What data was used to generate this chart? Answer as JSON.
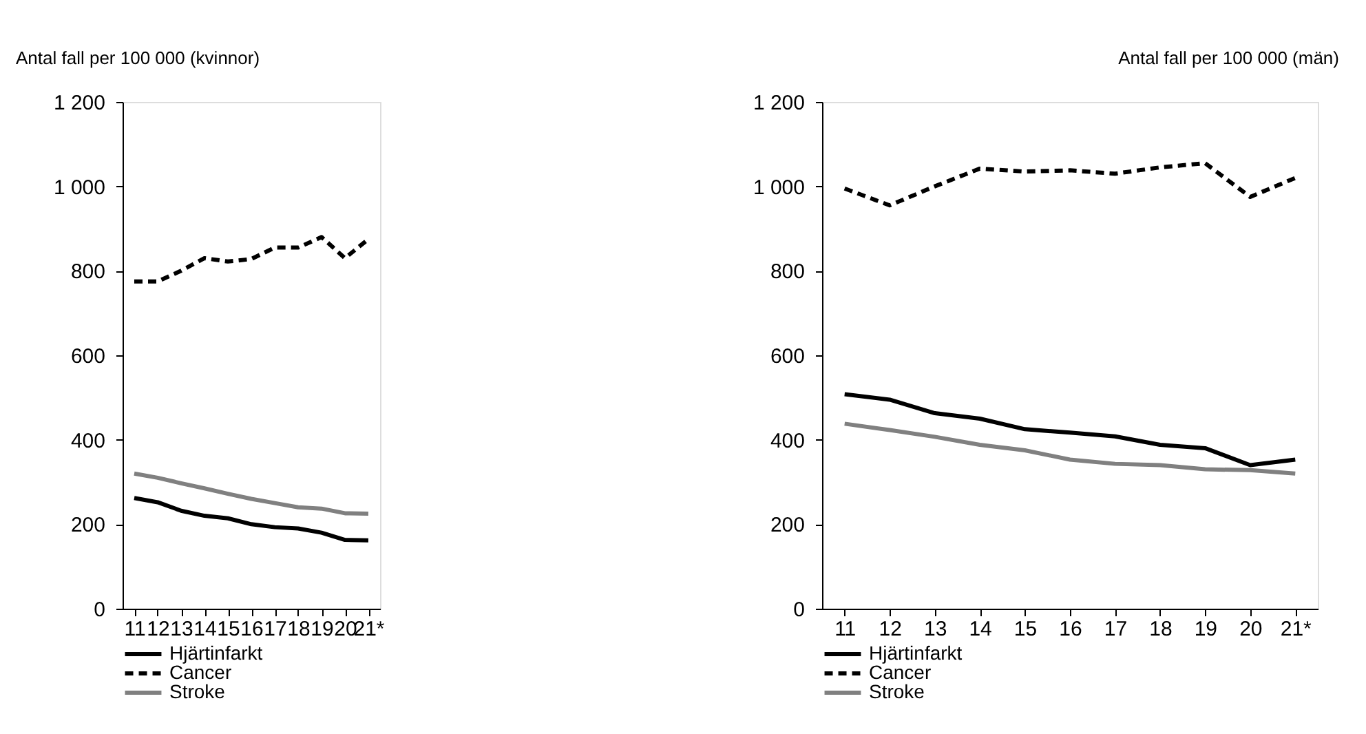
{
  "chart_data": [
    {
      "type": "line",
      "ylabel": "Antal fall per 100 000 (kvinnor)",
      "categories": [
        "11",
        "12",
        "13",
        "14",
        "15",
        "16",
        "17",
        "18",
        "19",
        "20",
        "21*"
      ],
      "ylim": [
        0,
        1200
      ],
      "yticks": [
        0,
        200,
        400,
        600,
        800,
        {
          "value": 1000,
          "label": "1 000"
        },
        {
          "value": 1200,
          "label": "1 200"
        }
      ],
      "grid": false,
      "legend": "bottom",
      "series": [
        {
          "name": "Hjärtinfarkt",
          "color": "#000000",
          "line_style": "solid",
          "values": [
            262,
            252,
            232,
            220,
            214,
            200,
            193,
            190,
            180,
            163,
            162
          ]
        },
        {
          "name": "Cancer",
          "color": "#000000",
          "line_style": "dashed",
          "values": [
            775,
            775,
            800,
            830,
            822,
            828,
            855,
            855,
            880,
            830,
            875
          ]
        },
        {
          "name": "Stroke",
          "color": "#808080",
          "line_style": "solid",
          "values": [
            320,
            310,
            297,
            285,
            272,
            260,
            250,
            240,
            237,
            226,
            225
          ]
        }
      ]
    },
    {
      "type": "line",
      "ylabel": "Antal fall per 100 000 (män)",
      "categories": [
        "11",
        "12",
        "13",
        "14",
        "15",
        "16",
        "17",
        "18",
        "19",
        "20",
        "21*"
      ],
      "ylim": [
        0,
        1200
      ],
      "yticks": [
        0,
        200,
        400,
        600,
        800,
        {
          "value": 1000,
          "label": "1 000"
        },
        {
          "value": 1200,
          "label": "1 200"
        }
      ],
      "grid": false,
      "legend": "bottom",
      "series": [
        {
          "name": "Hjärtinfarkt",
          "color": "#000000",
          "line_style": "solid",
          "values": [
            508,
            495,
            463,
            450,
            425,
            417,
            408,
            388,
            380,
            340,
            353
          ]
        },
        {
          "name": "Cancer",
          "color": "#000000",
          "line_style": "dashed",
          "values": [
            995,
            955,
            1000,
            1042,
            1035,
            1038,
            1030,
            1045,
            1055,
            975,
            1020
          ]
        },
        {
          "name": "Stroke",
          "color": "#808080",
          "line_style": "solid",
          "values": [
            438,
            423,
            407,
            388,
            375,
            353,
            343,
            340,
            330,
            328,
            320
          ]
        }
      ]
    }
  ]
}
